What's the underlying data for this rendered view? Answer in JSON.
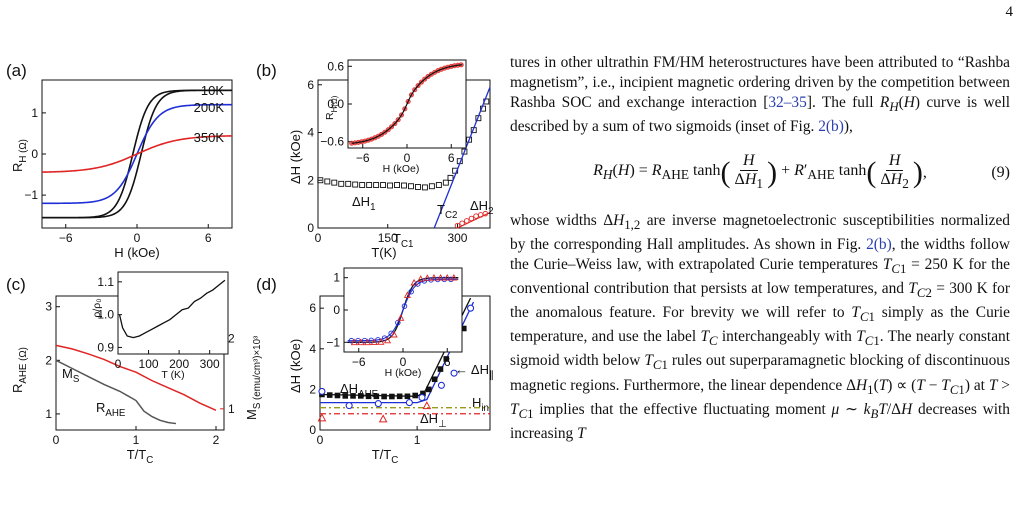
{
  "page_number": "4",
  "text": {
    "para1": "tures in other ultrathin FM/HM heterostructures have been attributed to “Rashba magnetism”, i.e., incipient magnetic ordering driven by the competition between Rashba SOC and exchange interaction [",
    "ref1": "32–35",
    "para1b": "]. The full ",
    "para1c": " curve is well described by a sum of two sigmoids (inset of Fig. ",
    "fig_ref": "2(b)",
    "para1d": "),",
    "eq_number": "(9)",
    "para2a": "whose widths ",
    "para2b": " are inverse magnetoelectronic susceptibilities normalized by the corresponding Hall amplitudes. As shown in Fig. ",
    "para2c": ", the widths follow the Curie–Weiss law, with extrapolated Curie temperatures ",
    "para2d": " for the conventional contribution that persists at low temperatures, and ",
    "para2e": " for the anomalous feature. For brevity we will refer to ",
    "para2f": " simply as the Curie temperature, and use the label ",
    "para2g": " interchangeably with ",
    "para2h": ". The nearly constant sigmoid width below ",
    "para2i": " rules out superparamagnetic blocking of discontinuous magnetic regions. Furthermore, the linear dependence ",
    "para2j": " implies that the effective fluctuating moment ",
    "para2k": " decreases with increasing ",
    "tc1_val": "= 250 K",
    "tc2_val": "= 300 K"
  },
  "colors": {
    "black": "#111111",
    "blue": "#1f2fd6",
    "red": "#e02424",
    "olive": "#9a9a1a",
    "gray": "#555555"
  },
  "chart_data": [
    {
      "panel": "(a)",
      "type": "line",
      "xlabel": "H (kOe)",
      "ylabel": "R_H (Ω)",
      "xlim": [
        -8,
        8
      ],
      "ylim": [
        -1.8,
        1.8
      ],
      "xticks": [
        "−6",
        "0",
        "6"
      ],
      "yticks": [
        "−1",
        "0",
        "1"
      ],
      "series": [
        {
          "name": "10K",
          "color": "#111111",
          "amp": 1.55,
          "w": 1.3,
          "hyst": 0.35
        },
        {
          "name": "200K",
          "color": "#1f2fd6",
          "amp": 1.2,
          "w": 1.8,
          "hyst": 0
        },
        {
          "name": "350K",
          "color": "#e02424",
          "amp": 0.45,
          "w": 3.5,
          "hyst": 0
        }
      ]
    },
    {
      "panel": "(b)",
      "type": "scatter",
      "xlabel": "T(K)",
      "ylabel": "ΔH (kOe)",
      "xlim": [
        0,
        370
      ],
      "ylim": [
        0,
        6.2
      ],
      "xticks": [
        "0",
        "150",
        "300"
      ],
      "yticks": [
        "0",
        "2",
        "4",
        "6"
      ],
      "labels": {
        "dh1": "ΔH",
        "dh1_sub": "1",
        "tc2": "T",
        "tc2_sub": "C2",
        "dh2": "ΔH",
        "dh2_sub": "2",
        "tc1": "T",
        "tc1_sub": "C1"
      },
      "series": [
        {
          "name": "ΔH1",
          "x": [
            5,
            20,
            35,
            50,
            65,
            80,
            95,
            110,
            125,
            140,
            155,
            170,
            185,
            200,
            215,
            230,
            245,
            260,
            275,
            285,
            295,
            305,
            315,
            325,
            335,
            345,
            355,
            362
          ],
          "y": [
            2.0,
            1.95,
            1.9,
            1.85,
            1.85,
            1.82,
            1.8,
            1.8,
            1.8,
            1.8,
            1.78,
            1.8,
            1.78,
            1.75,
            1.72,
            1.7,
            1.75,
            1.8,
            1.9,
            2.1,
            2.4,
            2.8,
            3.2,
            3.7,
            4.1,
            4.6,
            5.0,
            5.3
          ]
        },
        {
          "name": "ΔH2",
          "x": [
            300,
            310,
            320,
            330,
            340,
            350,
            360
          ],
          "y": [
            0.1,
            0.2,
            0.3,
            0.4,
            0.5,
            0.55,
            0.6
          ]
        }
      ],
      "inset": {
        "xlabel": "H (kOe)",
        "ylabel": "R_H(Ω)",
        "xticks": [
          "−6",
          "0",
          "6"
        ],
        "yticks": [
          "−0.6",
          "0.0",
          "0.6"
        ],
        "xlim": [
          -8,
          8
        ],
        "ylim": [
          -0.7,
          0.7
        ]
      }
    },
    {
      "panel": "(c)",
      "type": "line",
      "xlabel": "T/T_C",
      "ylabel": "R_AHE (Ω)",
      "ylabel2": "M_S (emu/cm³)×10³",
      "xlim": [
        0,
        2.1
      ],
      "ylim": [
        0.7,
        3.2
      ],
      "ylim2": [
        0.7,
        2.6
      ],
      "xticks": [
        "0",
        "1",
        "2"
      ],
      "yticks": [
        "1",
        "2",
        "3"
      ],
      "yticks2": [
        "1",
        "2"
      ],
      "labels": {
        "ms": "M",
        "ms_sub": "S",
        "rahe": "R",
        "rahe_sub": "AHE"
      },
      "series": [
        {
          "name": "R_AHE",
          "color": "#555555",
          "x": [
            0.0,
            0.2,
            0.4,
            0.6,
            0.8,
            1.0,
            1.1,
            1.2,
            1.3,
            1.4,
            1.5
          ],
          "y": [
            2.0,
            1.85,
            1.7,
            1.55,
            1.42,
            1.25,
            1.05,
            0.95,
            0.88,
            0.84,
            0.82
          ]
        },
        {
          "name": "M_S",
          "color": "#e02424",
          "x": [
            0.0,
            0.2,
            0.4,
            0.6,
            0.8,
            1.0,
            1.2,
            1.4,
            1.6,
            1.8,
            2.0
          ],
          "y": [
            1.9,
            1.85,
            1.78,
            1.7,
            1.6,
            1.52,
            1.4,
            1.3,
            1.2,
            1.08,
            0.98
          ]
        }
      ],
      "inset": {
        "xlabel": "T (K)",
        "ylabel": "ρ/ρ₀",
        "xticks": [
          "0",
          "100",
          "200",
          "300"
        ],
        "yticks": [
          "0.9",
          "1.0",
          "1.1"
        ],
        "xlim": [
          0,
          360
        ],
        "ylim": [
          0.88,
          1.13
        ],
        "x": [
          5,
          15,
          30,
          50,
          70,
          90,
          110,
          130,
          150,
          170,
          190,
          210,
          230,
          250,
          270,
          290,
          310,
          330,
          350
        ],
        "y": [
          1.0,
          0.96,
          0.935,
          0.93,
          0.935,
          0.945,
          0.955,
          0.965,
          0.975,
          0.985,
          1.0,
          1.015,
          1.02,
          1.04,
          1.05,
          1.065,
          1.075,
          1.09,
          1.105
        ]
      }
    },
    {
      "panel": "(d)",
      "type": "scatter",
      "xlabel": "T/T_C",
      "ylabel": "ΔH (kOe)",
      "xlim": [
        0,
        1.75
      ],
      "ylim": [
        0,
        6.6
      ],
      "xticks": [
        "0",
        "1"
      ],
      "yticks": [
        "0",
        "2",
        "4",
        "6"
      ],
      "labels": {
        "dh_ahe": "ΔH",
        "dh_ahe_sub": "AHE",
        "dh_par": "ΔH",
        "dh_par_sub": "∥",
        "h_in": "H",
        "h_in_sub": "in",
        "dh_perp": "ΔH",
        "dh_perp_sub": "⊥"
      },
      "series": [
        {
          "name": "ΔH_AHE",
          "x": [
            0.02,
            0.1,
            0.18,
            0.26,
            0.34,
            0.42,
            0.5,
            0.58,
            0.66,
            0.74,
            0.82,
            0.9,
            0.98,
            1.06,
            1.12,
            1.18,
            1.24,
            1.3,
            1.36,
            1.42,
            1.48
          ],
          "y": [
            1.75,
            1.72,
            1.7,
            1.68,
            1.68,
            1.68,
            1.66,
            1.66,
            1.65,
            1.65,
            1.66,
            1.66,
            1.7,
            1.8,
            2.0,
            2.5,
            3.0,
            3.5,
            4.0,
            4.5,
            5.0
          ]
        },
        {
          "name": "ΔH_∥",
          "x": [
            0.02,
            0.3,
            0.6,
            0.92,
            1.05,
            1.25,
            1.38,
            1.55
          ],
          "y": [
            1.9,
            1.2,
            1.3,
            1.35,
            1.6,
            2.2,
            2.8,
            6.0
          ]
        },
        {
          "name": "ΔH_⊥",
          "x": [
            0.02,
            0.65,
            1.1
          ],
          "y": [
            0.6,
            0.55,
            1.2
          ]
        }
      ],
      "inset": {
        "xlabel": "H (kOe)",
        "ylabel": "",
        "xticks": [
          "−6",
          "0",
          "6"
        ],
        "yticks": [
          "−1",
          "0",
          "1"
        ],
        "xlim": [
          -8,
          8
        ],
        "ylim": [
          -1.3,
          1.3
        ]
      }
    }
  ]
}
